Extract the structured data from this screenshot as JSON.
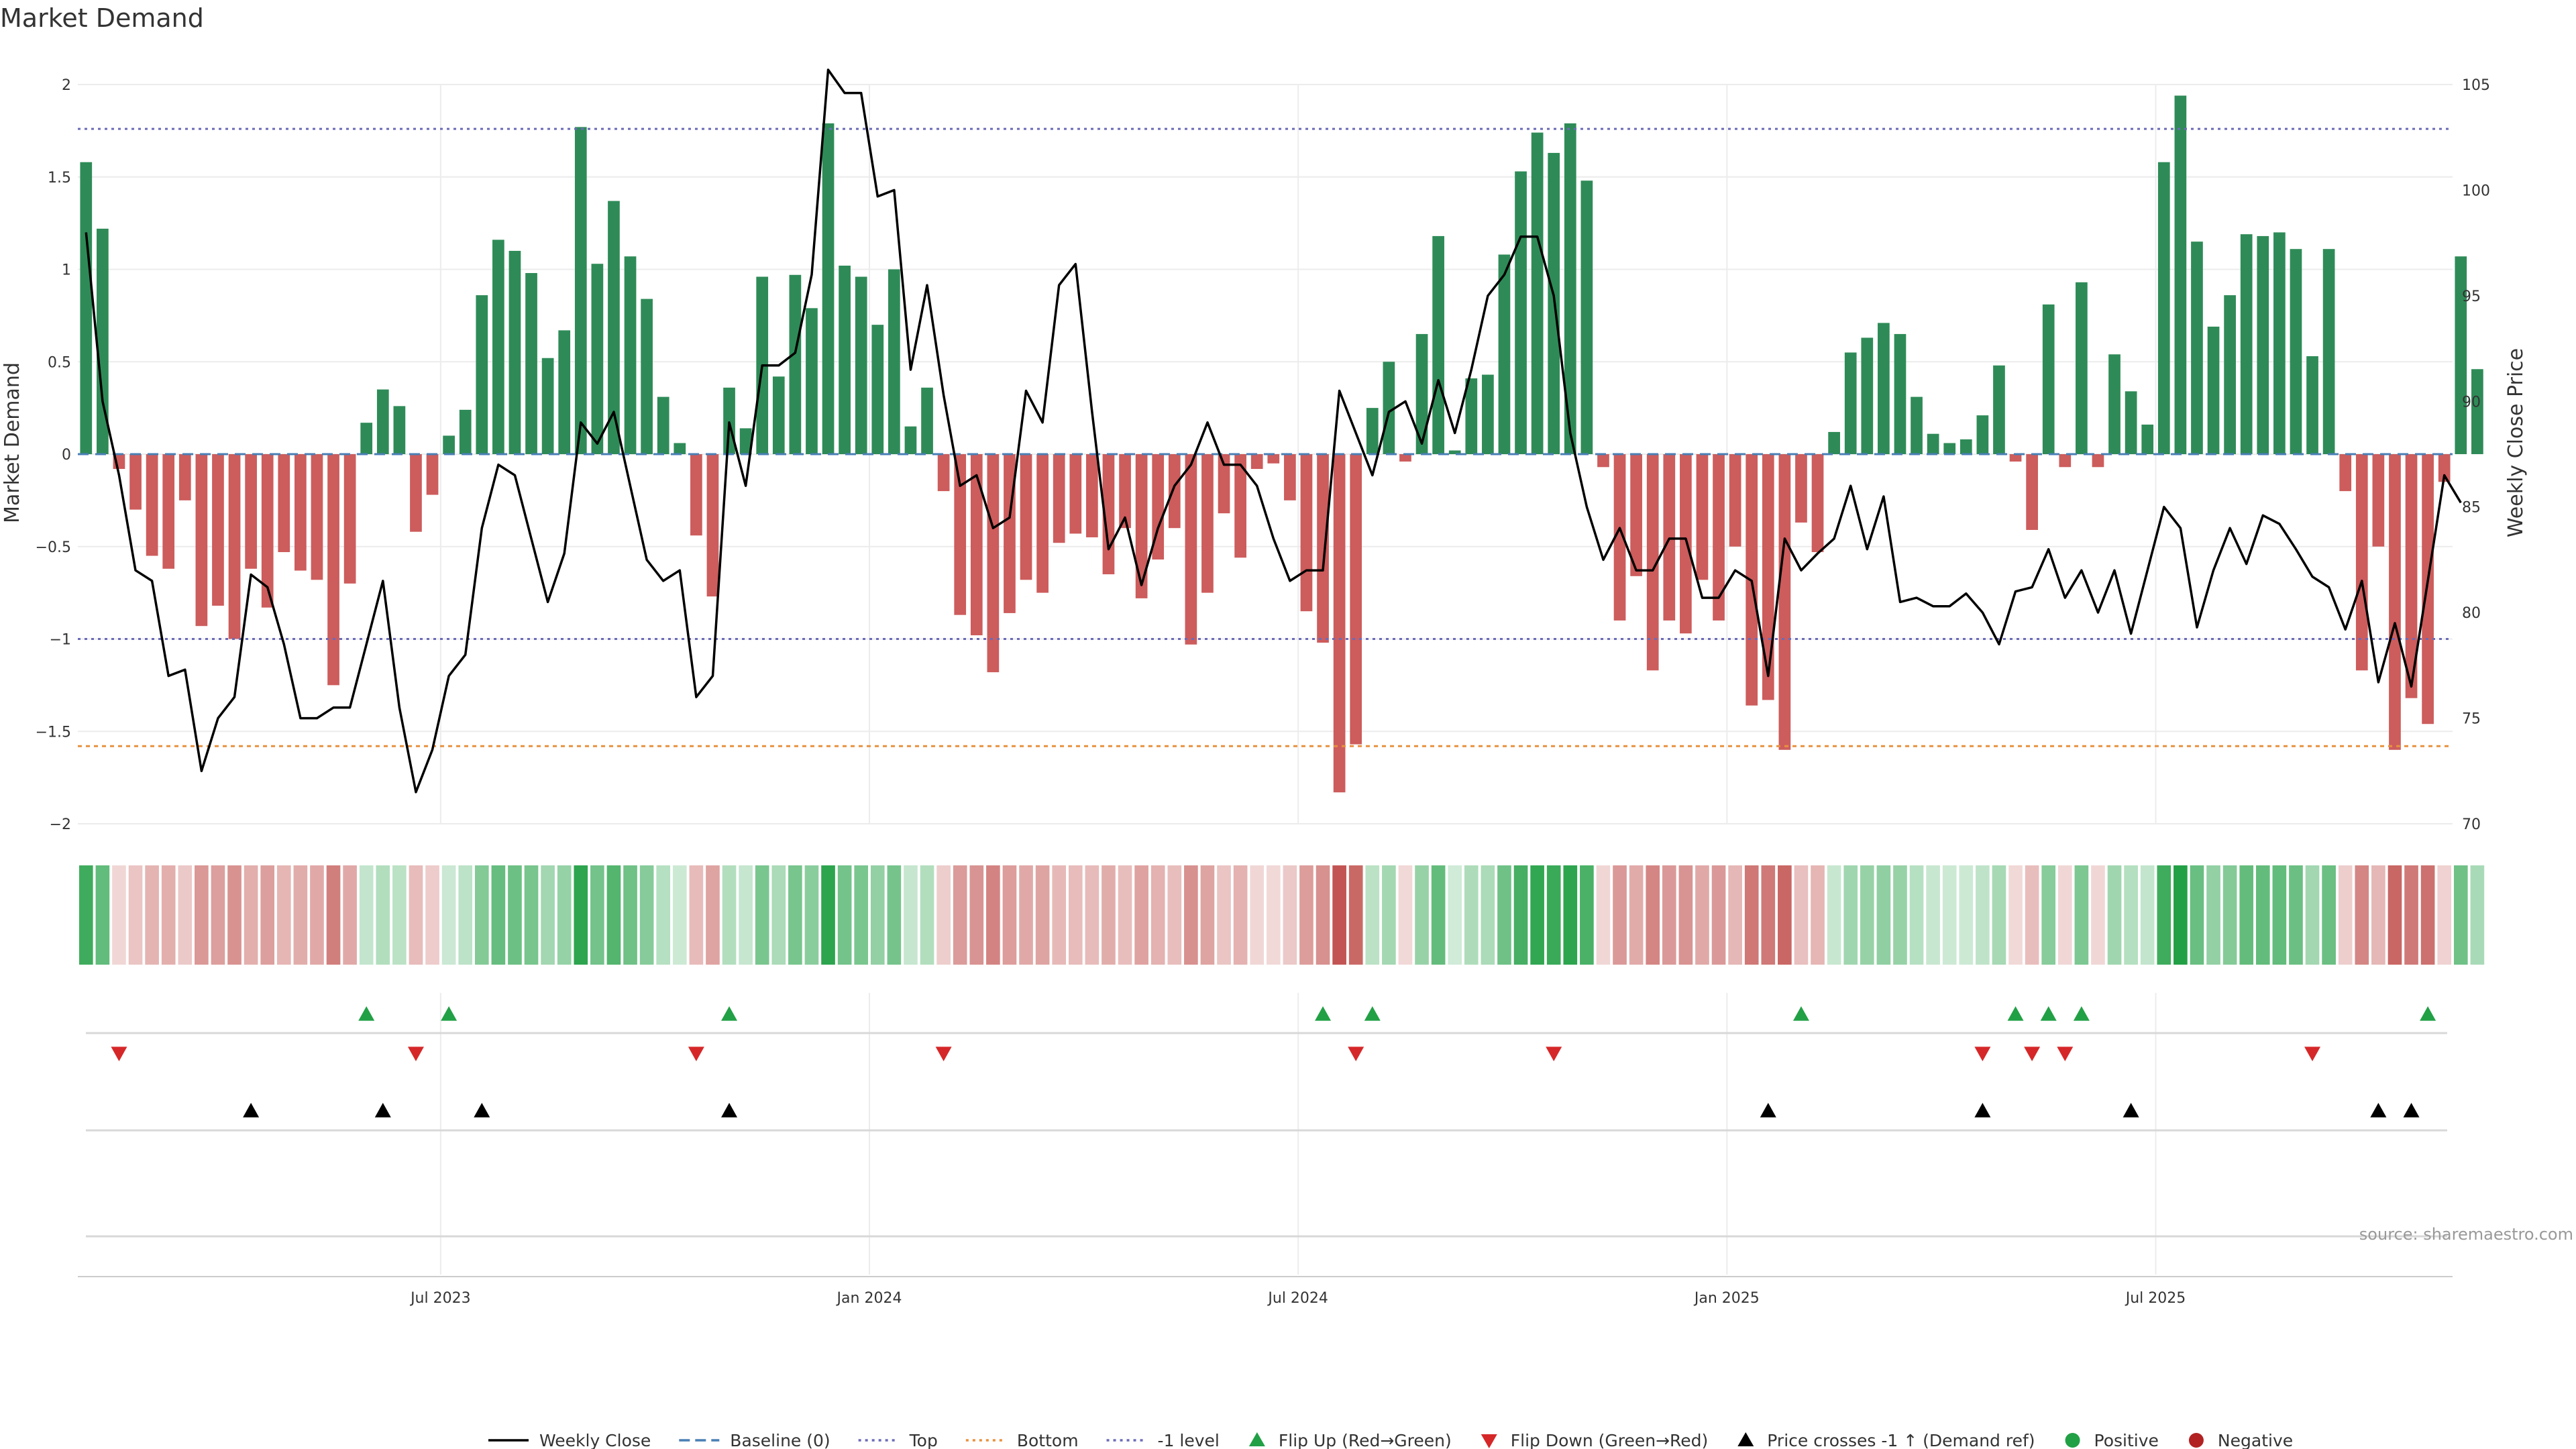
{
  "chart_data": {
    "type": "bar",
    "title": "Market Demand",
    "ylabel": "Market Demand",
    "y2label": "Weekly Close Price",
    "source": "source: sharemaestro.com",
    "ylim": [
      -2,
      2
    ],
    "y2lim": [
      70,
      105
    ],
    "y_ticks": [
      {
        "v": 2,
        "label": "2"
      },
      {
        "v": 1.5,
        "label": "1.5"
      },
      {
        "v": 1,
        "label": "1"
      },
      {
        "v": 0.5,
        "label": "0.5"
      },
      {
        "v": 0,
        "label": "0"
      },
      {
        "v": -0.5,
        "label": "−0.5"
      },
      {
        "v": -1,
        "label": "−1"
      },
      {
        "v": -1.5,
        "label": "−1.5"
      },
      {
        "v": -2,
        "label": "−2"
      }
    ],
    "y2_ticks": [
      {
        "v": 105,
        "label": "105"
      },
      {
        "v": 100,
        "label": "100"
      },
      {
        "v": 95,
        "label": "95"
      },
      {
        "v": 90,
        "label": "90"
      },
      {
        "v": 85,
        "label": "85"
      },
      {
        "v": 80,
        "label": "80"
      },
      {
        "v": 75,
        "label": "75"
      },
      {
        "v": 70,
        "label": "70"
      }
    ],
    "x_ticks": [
      {
        "week": 22,
        "label": "Jul 2023"
      },
      {
        "week": 48,
        "label": "Jan 2024"
      },
      {
        "week": 74,
        "label": "Jul 2024"
      },
      {
        "week": 100,
        "label": "Jan 2025"
      },
      {
        "week": 126,
        "label": "Jul 2025"
      }
    ],
    "week_count": 144,
    "demand": [
      1.58,
      1.22,
      -0.08,
      -0.3,
      -0.55,
      -0.62,
      -0.25,
      -0.93,
      -0.82,
      -1.0,
      -0.62,
      -0.83,
      -0.53,
      -0.63,
      -0.68,
      -1.25,
      -0.7,
      0.17,
      0.35,
      0.26,
      -0.42,
      -0.22,
      0.1,
      0.24,
      0.86,
      1.16,
      1.1,
      0.98,
      0.52,
      0.67,
      1.77,
      1.03,
      1.37,
      1.07,
      0.84,
      0.31,
      0.06,
      -0.44,
      -0.77,
      0.36,
      0.14,
      0.96,
      0.42,
      0.97,
      0.79,
      1.79,
      1.02,
      0.96,
      0.7,
      1.0,
      0.15,
      0.36,
      -0.2,
      -0.87,
      -0.98,
      -1.18,
      -0.86,
      -0.68,
      -0.75,
      -0.48,
      -0.43,
      -0.45,
      -0.65,
      -0.4,
      -0.78,
      -0.57,
      -0.4,
      -1.03,
      -0.75,
      -0.32,
      -0.56,
      -0.08,
      -0.05,
      -0.25,
      -0.85,
      -1.02,
      -1.83,
      -1.57,
      0.25,
      0.5,
      -0.04,
      0.65,
      1.18,
      0.02,
      0.41,
      0.43,
      1.08,
      1.53,
      1.74,
      1.63,
      1.79,
      1.48,
      -0.07,
      -0.9,
      -0.66,
      -1.17,
      -0.9,
      -0.97,
      -0.68,
      -0.9,
      -0.5,
      -1.36,
      -1.33,
      -1.6,
      -0.37,
      -0.53,
      0.12,
      0.55,
      0.63,
      0.71,
      0.65,
      0.31,
      0.11,
      0.06,
      0.08,
      0.21,
      0.48,
      -0.04,
      -0.41,
      0.81,
      -0.07,
      0.93,
      -0.07,
      0.54,
      0.34,
      0.16,
      1.58,
      1.94,
      1.15,
      0.69,
      0.86,
      1.19,
      1.18,
      1.2,
      1.11,
      0.53,
      1.11,
      -0.2,
      -1.17,
      -0.5,
      -1.6,
      -1.32,
      -1.46,
      -0.15,
      1.07,
      0.46
    ],
    "weekly_close": [
      98.0,
      90.0,
      86.5,
      82.0,
      81.5,
      77.0,
      77.3,
      72.5,
      75.0,
      76.0,
      81.8,
      81.2,
      78.5,
      75.0,
      75.0,
      75.5,
      75.5,
      78.5,
      81.5,
      75.5,
      71.5,
      73.5,
      77.0,
      78.0,
      84.0,
      87.0,
      86.5,
      83.5,
      80.5,
      82.8,
      89.0,
      88.0,
      89.5,
      86.0,
      82.5,
      81.5,
      82.0,
      76.0,
      77.0,
      89.0,
      86.0,
      91.7,
      91.7,
      92.3,
      96.0,
      105.7,
      104.6,
      104.6,
      99.7,
      100.0,
      91.5,
      95.5,
      90.3,
      86.0,
      86.5,
      84.0,
      84.5,
      90.5,
      89.0,
      95.5,
      96.5,
      89.5,
      83.0,
      84.5,
      81.3,
      84.0,
      86.0,
      87.0,
      89.0,
      87.0,
      87.0,
      86.0,
      83.5,
      81.5,
      82.0,
      82.0,
      90.5,
      88.5,
      86.5,
      89.5,
      90.0,
      88.0,
      91.0,
      88.5,
      91.5,
      95.0,
      96.0,
      97.8,
      97.8,
      95.0,
      88.5,
      85.0,
      82.5,
      84.0,
      82.0,
      82.0,
      83.5,
      83.5,
      80.7,
      80.7,
      82.0,
      81.5,
      77.0,
      83.5,
      82.0,
      82.8,
      83.5,
      86.0,
      83.0,
      85.5,
      80.5,
      80.7,
      80.3,
      80.3,
      80.9,
      80.0,
      78.5,
      81.0,
      81.2,
      83.0,
      80.7,
      82.0,
      80.0,
      82.0,
      79.0,
      82.0,
      85.0,
      84.0,
      79.3,
      82.0,
      84.0,
      82.3,
      84.6,
      84.2,
      83.0,
      81.7,
      81.2,
      79.2,
      81.5,
      76.7,
      79.5,
      76.5,
      81.5,
      86.5,
      85.2
    ],
    "levels": {
      "top": 1.76,
      "bottom": -1.58,
      "minus_one": -1.0,
      "baseline": 0
    },
    "heat_strip": {
      "weeks": 144,
      "description_ref": "demand"
    },
    "flip_up_weeks": [
      17,
      22,
      39,
      75,
      78,
      104,
      117,
      119,
      121,
      142
    ],
    "flip_down_weeks": [
      2,
      20,
      37,
      52,
      77,
      89,
      115,
      118,
      120,
      135
    ],
    "price_cross_weeks": [
      10,
      18,
      24,
      39,
      102,
      115,
      124,
      139,
      141
    ],
    "colors": {
      "positive": "#2e8b57",
      "negative": "#cd5c5c",
      "line": "#000000",
      "top": "#6b6bb8",
      "bottom": "#e8913f",
      "minus_one": "#6b6bb8",
      "baseline": "#4a7fb5",
      "flip_up": "#22a045",
      "flip_down": "#d62728",
      "cross": "#000000",
      "legend_positive": "#22a045",
      "legend_negative": "#b22222"
    },
    "legend": [
      {
        "key": "weekly_close",
        "label": "Weekly Close",
        "type": "line"
      },
      {
        "key": "baseline",
        "label": "Baseline (0)",
        "type": "dashed"
      },
      {
        "key": "top",
        "label": "Top",
        "type": "dotted"
      },
      {
        "key": "bottom",
        "label": "Bottom",
        "type": "dotted"
      },
      {
        "key": "minus_one",
        "label": "-1 level",
        "type": "dotted"
      },
      {
        "key": "flip_up",
        "label": "Flip Up (Red→Green)",
        "type": "triangle-up"
      },
      {
        "key": "flip_down",
        "label": "Flip Down (Green→Red)",
        "type": "triangle-down"
      },
      {
        "key": "cross",
        "label": "Price crosses -1 ↑ (Demand ref)",
        "type": "triangle-up"
      },
      {
        "key": "legend_positive",
        "label": "Positive",
        "type": "dot"
      },
      {
        "key": "legend_negative",
        "label": "Negative",
        "type": "dot"
      }
    ]
  }
}
